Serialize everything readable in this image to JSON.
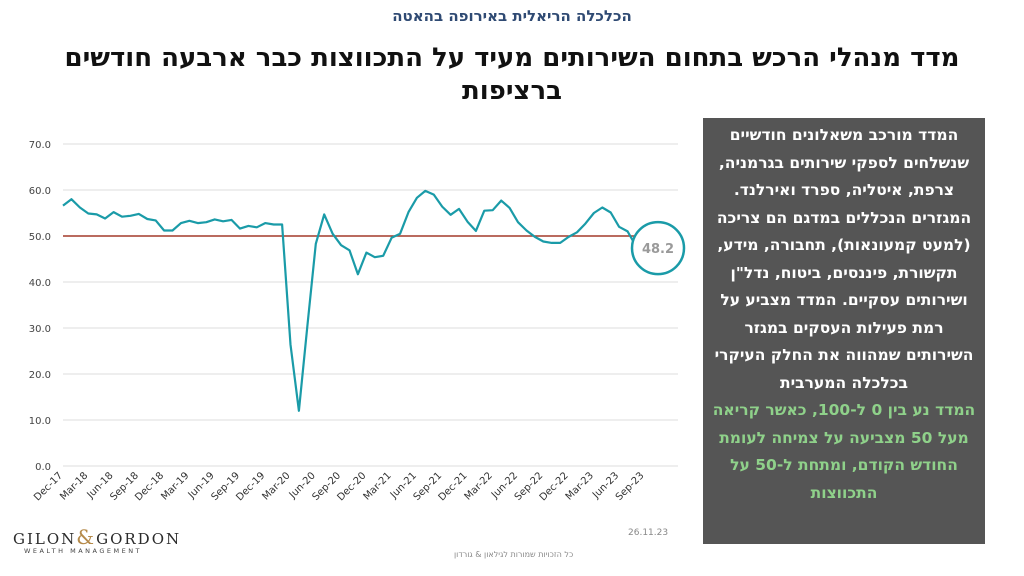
{
  "header": {
    "topic": "הכלכלה הריאלית באירופה בהאטה",
    "title": "מדד מנהלי הרכש בתחום השירותים מעיד על התכווצות כבר ארבעה חודשים ברציפות"
  },
  "sidebar": {
    "description": "המדד מורכב משאלונים חודשיים שנשלחים לספקי שירותים בגרמניה, צרפת, איטליה, ספרד ואירלנד. המגזרים הנכללים במדגם הם צריכה (למעט קמעונאות), תחבורה, מידע, תקשורת, פיננסים, ביטוח, נדל\"ן ושירותים עסקיים. המדד מצביע על רמת פעילות העסקים במגזר השירותים שמהווה את החלק העיקרי בכלכלה המערבית",
    "note": "המדד נע בין 0 ל-100, כאשר קריאה מעל 50 מצביעה על צמיחה לעומת החודש הקודם, ומתחת ל-50 על התכווצות"
  },
  "footer": {
    "date": "26.11.23",
    "copyright": "כל הזכויות שמורות לגילאון & גורדון",
    "logo_text": "GILON & GORDON",
    "logo_sub": "WEALTH MANAGEMENT"
  },
  "colors": {
    "series": "#1a9ba8",
    "threshold": "#a33a2a",
    "grid": "#dcdcdc"
  },
  "chart_data": {
    "type": "line",
    "ylim": [
      0,
      70
    ],
    "yticks": [
      "0.0",
      "10.0",
      "20.0",
      "30.0",
      "40.0",
      "50.0",
      "60.0",
      "70.0"
    ],
    "xtick_labels": [
      "Dec-17",
      "Mar-18",
      "Jun-18",
      "Sep-18",
      "Dec-18",
      "Mar-19",
      "Jun-19",
      "Sep-19",
      "Dec-19",
      "Mar-20",
      "Jun-20",
      "Sep-20",
      "Dec-20",
      "Mar-21",
      "Jun-21",
      "Sep-21",
      "Dec-21",
      "Mar-22",
      "Jun-22",
      "Sep-22",
      "Dec-22",
      "Mar-23",
      "Jun-23",
      "Sep-23"
    ],
    "threshold": 50,
    "grid": true,
    "annotation": "48.2",
    "series": [
      {
        "values": [
          56.6,
          58.0,
          56.2,
          54.9,
          54.7,
          53.8,
          55.2,
          54.2,
          54.4,
          54.8,
          53.7,
          53.4,
          51.2,
          51.2,
          52.8,
          53.3,
          52.8,
          53.0,
          53.6,
          53.2,
          53.5,
          51.6,
          52.2,
          51.9,
          52.8,
          52.5,
          52.5,
          26.4,
          12.0,
          30.5,
          48.3,
          54.7,
          50.5,
          48.0,
          46.9,
          41.7,
          46.4,
          45.4,
          45.7,
          49.6,
          50.5,
          55.2,
          58.3,
          59.8,
          59.0,
          56.4,
          54.6,
          55.9,
          53.1,
          51.1,
          55.5,
          55.6,
          57.7,
          56.1,
          53.0,
          51.2,
          49.8,
          48.8,
          48.5,
          48.5,
          49.8,
          50.8,
          52.7,
          55.0,
          56.2,
          55.1,
          52.0,
          51.0,
          47.8
        ]
      }
    ]
  }
}
